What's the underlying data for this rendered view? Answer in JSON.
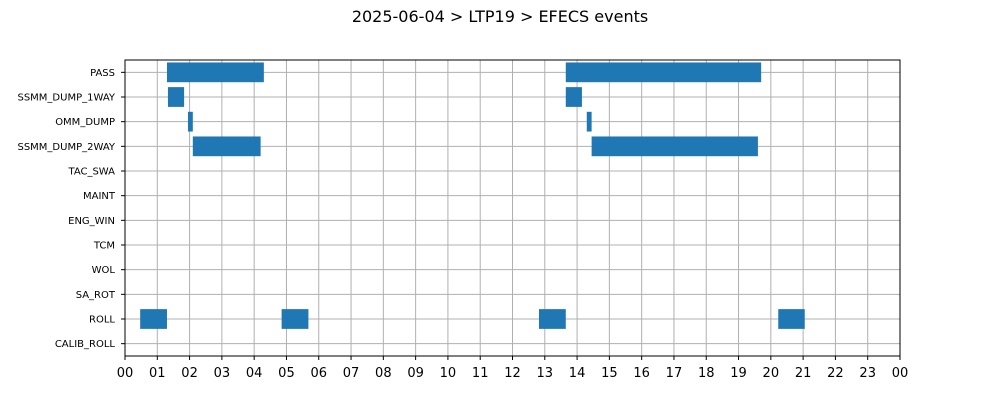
{
  "chart_data": {
    "type": "bar",
    "orientation": "horizontal-timeline",
    "title": "2025-06-04 > LTP19 > EFECS events",
    "xlabel": "",
    "ylabel": "",
    "x_ticks": [
      "00",
      "01",
      "02",
      "03",
      "04",
      "05",
      "06",
      "07",
      "08",
      "09",
      "10",
      "11",
      "12",
      "13",
      "14",
      "15",
      "16",
      "17",
      "18",
      "19",
      "20",
      "21",
      "22",
      "23",
      "00"
    ],
    "xlim_hours": [
      0,
      24
    ],
    "grid": true,
    "color": "#1f77b4",
    "categories": [
      "PASS",
      "SSMM_DUMP_1WAY",
      "OMM_DUMP",
      "SSMM_DUMP_2WAY",
      "TAC_SWA",
      "MAINT",
      "ENG_WIN",
      "TCM",
      "WOL",
      "SA_ROT",
      "ROLL",
      "CALIB_ROLL"
    ],
    "series": [
      {
        "category": "PASS",
        "intervals": [
          [
            1.3,
            4.3
          ],
          [
            13.65,
            19.7
          ]
        ]
      },
      {
        "category": "SSMM_DUMP_1WAY",
        "intervals": [
          [
            1.33,
            1.83
          ],
          [
            13.65,
            14.15
          ]
        ]
      },
      {
        "category": "OMM_DUMP",
        "intervals": [
          [
            1.95,
            2.1
          ],
          [
            14.3,
            14.45
          ]
        ]
      },
      {
        "category": "SSMM_DUMP_2WAY",
        "intervals": [
          [
            2.1,
            4.2
          ],
          [
            14.45,
            19.6
          ]
        ]
      },
      {
        "category": "TAC_SWA",
        "intervals": []
      },
      {
        "category": "MAINT",
        "intervals": []
      },
      {
        "category": "ENG_WIN",
        "intervals": []
      },
      {
        "category": "TCM",
        "intervals": []
      },
      {
        "category": "WOL",
        "intervals": []
      },
      {
        "category": "SA_ROT",
        "intervals": []
      },
      {
        "category": "ROLL",
        "intervals": [
          [
            0.47,
            1.3
          ],
          [
            4.85,
            5.68
          ],
          [
            12.82,
            13.65
          ],
          [
            20.23,
            21.05
          ]
        ]
      },
      {
        "category": "CALIB_ROLL",
        "intervals": []
      }
    ]
  }
}
